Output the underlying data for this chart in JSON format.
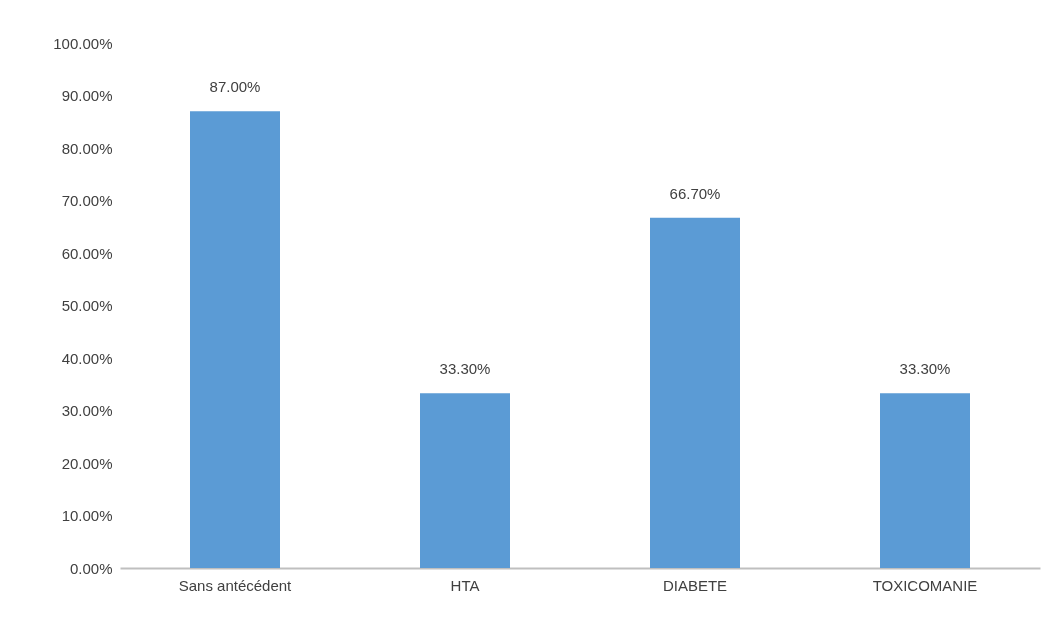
{
  "chart_data": {
    "type": "bar",
    "categories": [
      "Sans antécédent",
      "HTA",
      "DIABETE",
      "TOXICOMANIE"
    ],
    "values": [
      87,
      33.3,
      66.7,
      33.3
    ],
    "value_labels": [
      "87.00%",
      "33.30%",
      "66.70%",
      "33.30%"
    ],
    "color": "#5b9bd5",
    "ylim": [
      0,
      100
    ],
    "yticks": [
      {
        "value": 0,
        "label": "0.00%"
      },
      {
        "value": 10,
        "label": "10.00%"
      },
      {
        "value": 20,
        "label": "20.00%"
      },
      {
        "value": 30,
        "label": "30.00%"
      },
      {
        "value": 40,
        "label": "40.00%"
      },
      {
        "value": 50,
        "label": "50.00%"
      },
      {
        "value": 60,
        "label": "60.00%"
      },
      {
        "value": 70,
        "label": "70.00%"
      },
      {
        "value": 80,
        "label": "80.00%"
      },
      {
        "value": 90,
        "label": "90.00%"
      },
      {
        "value": 100,
        "label": "100.00%"
      }
    ],
    "grid": false
  }
}
